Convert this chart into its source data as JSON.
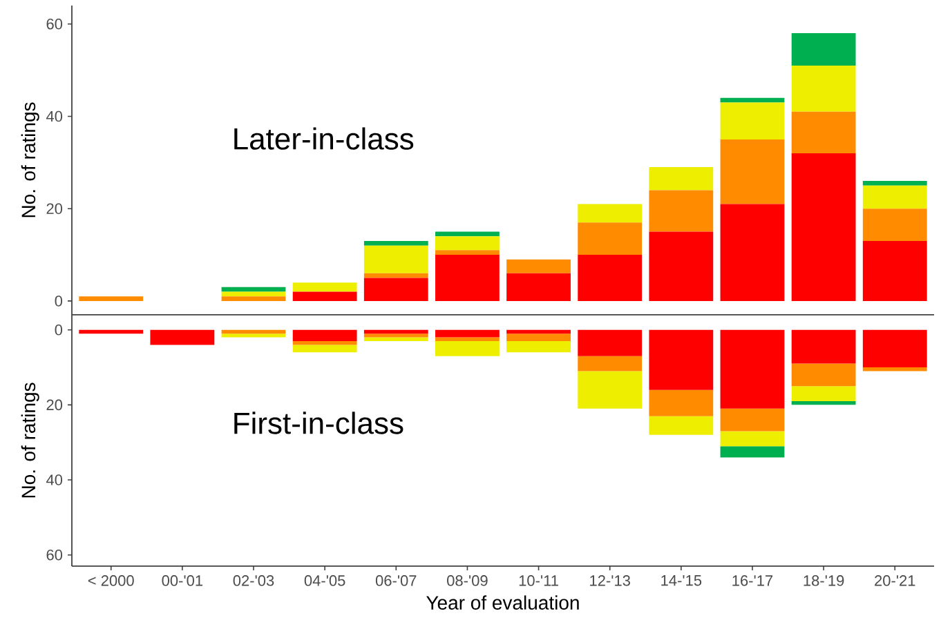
{
  "chart_data": [
    {
      "type": "bar",
      "stacked": true,
      "title": "Later-in-class",
      "ylabel": "No. of ratings",
      "tick_labels": "y",
      "grid": false,
      "categories": [
        null,
        null,
        null,
        null,
        null,
        null,
        null,
        null,
        null,
        null,
        null,
        null
      ],
      "ylim": [
        -3,
        64
      ],
      "yticks": [
        0,
        20,
        40,
        60
      ],
      "series": [
        {
          "color": "#ff0000",
          "values": [
            0,
            0,
            0,
            2,
            5,
            10,
            6,
            10,
            15,
            21,
            32,
            13
          ]
        },
        {
          "color": "#ff8c00",
          "values": [
            1,
            0,
            1,
            0,
            1,
            1,
            3,
            7,
            9,
            14,
            9,
            7
          ]
        },
        {
          "color": "#eeee00",
          "values": [
            0,
            0,
            1,
            2,
            6,
            3,
            0,
            4,
            5,
            8,
            10,
            5
          ]
        },
        {
          "color": "#00b050",
          "values": [
            0,
            0,
            1,
            0,
            1,
            1,
            0,
            0,
            0,
            1,
            7,
            1
          ]
        }
      ]
    },
    {
      "type": "bar",
      "stacked": true,
      "title": "First-in-class",
      "ylabel": "No. of ratings",
      "xlabel": "Year of evaluation",
      "grid": false,
      "categories": [
        "< 2000",
        "00-'01",
        "02-'03",
        "04-'05",
        "06-'07",
        "08-'09",
        "10-'11",
        "12-'13",
        "14-'15",
        "16-'17",
        "18-'19",
        "20-'21"
      ],
      "ylim": [
        63,
        -4
      ],
      "yticks": [
        0,
        20,
        40,
        60
      ],
      "series": [
        {
          "color": "#ff0000",
          "values": [
            1,
            4,
            0,
            3,
            1,
            2,
            1,
            7,
            16,
            21,
            9,
            10
          ]
        },
        {
          "color": "#ff8c00",
          "values": [
            0,
            0,
            1,
            1,
            1,
            1,
            2,
            4,
            7,
            6,
            6,
            1
          ]
        },
        {
          "color": "#eeee00",
          "values": [
            0,
            0,
            1,
            2,
            1,
            4,
            3,
            10,
            5,
            4,
            4,
            0
          ]
        },
        {
          "color": "#00b050",
          "values": [
            0,
            0,
            0,
            0,
            0,
            0,
            0,
            0,
            0,
            3,
            1,
            0
          ]
        }
      ]
    }
  ]
}
